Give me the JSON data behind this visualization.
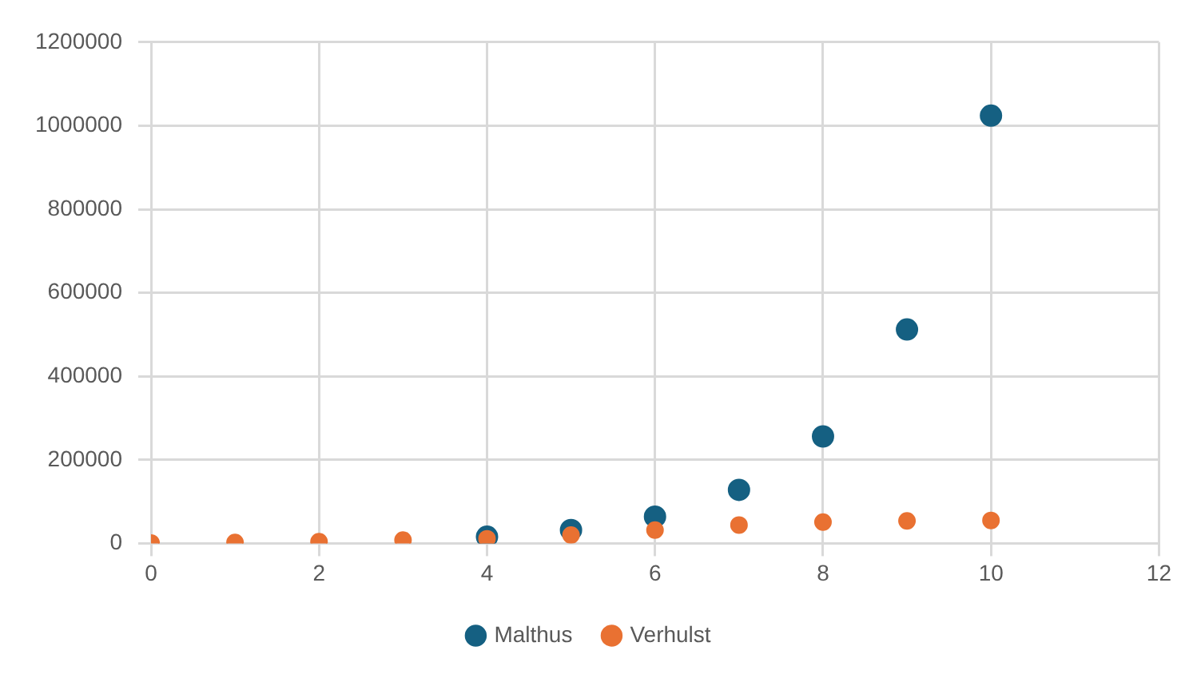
{
  "chart_data": {
    "type": "scatter",
    "x": [
      0,
      1,
      2,
      3,
      4,
      5,
      6,
      7,
      8,
      9,
      10
    ],
    "series": [
      {
        "name": "Malthus",
        "color": "#156082",
        "values": [
          null,
          null,
          null,
          null,
          16000,
          32000,
          64000,
          128000,
          256000,
          512000,
          1024000
        ]
      },
      {
        "name": "Verhulst",
        "color": "#e97132",
        "values": [
          1000,
          2000,
          4000,
          8000,
          11000,
          20000,
          32000,
          44000,
          51000,
          54000,
          55000
        ]
      }
    ],
    "xlim": [
      0,
      12
    ],
    "xticks": [
      0,
      2,
      4,
      6,
      8,
      10,
      12
    ],
    "ylim": [
      0,
      1200000
    ],
    "yticks": [
      0,
      200000,
      400000,
      600000,
      800000,
      1000000,
      1200000
    ],
    "grid": true,
    "legend": "bottom",
    "marker": "circle"
  }
}
